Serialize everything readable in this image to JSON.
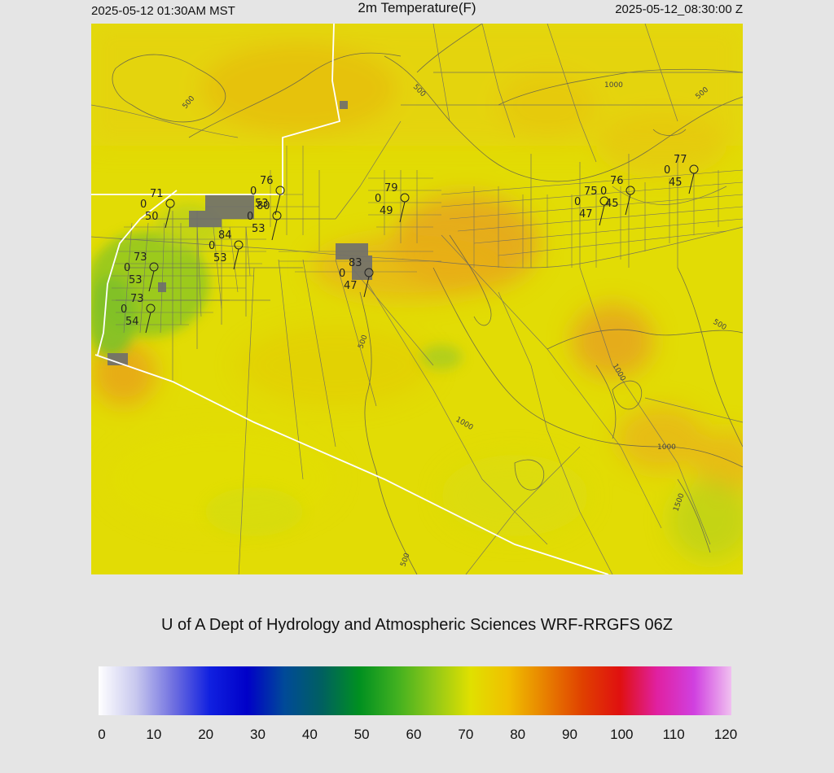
{
  "header": {
    "local_time": "2025-05-12 01:30AM MST",
    "title": "2m Temperature(F)",
    "utc_time": "2025-05-12_08:30:00 Z"
  },
  "footer": {
    "credit": "U of A Dept of Hydrology and Atmospheric Sciences WRF-RRGFS 06Z"
  },
  "colorbar": {
    "ticks": [
      "0",
      "10",
      "20",
      "30",
      "40",
      "50",
      "60",
      "70",
      "80",
      "90",
      "100",
      "110",
      "120"
    ],
    "min": 0,
    "max": 120,
    "colors": [
      "#ffffff",
      "#c8c8ee",
      "#7070e0",
      "#1020e0",
      "#0000c8",
      "#004a98",
      "#006060",
      "#009020",
      "#40b020",
      "#90c818",
      "#e0e000",
      "#f0c000",
      "#e88000",
      "#e04000",
      "#e01010",
      "#e020a0",
      "#d040e0",
      "#f0c0f0"
    ]
  },
  "stations": [
    {
      "temp": "71",
      "wind": "0",
      "dew": "50"
    },
    {
      "temp": "76",
      "wind": "0",
      "dew": "53"
    },
    {
      "temp": "80",
      "wind": "0",
      "dew": "53"
    },
    {
      "temp": "84",
      "wind": "0",
      "dew": "53"
    },
    {
      "temp": "73",
      "wind": "0",
      "dew": "53"
    },
    {
      "temp": "73",
      "wind": "0",
      "dew": "54"
    },
    {
      "temp": "79",
      "wind": "0",
      "dew": "49"
    },
    {
      "temp": "83",
      "wind": "0",
      "dew": "47"
    },
    {
      "temp": "76",
      "wind": "0",
      "dew": "45"
    },
    {
      "temp": "75",
      "wind": "0",
      "dew": "47"
    },
    {
      "temp": "77",
      "wind": "0",
      "dew": "45"
    }
  ],
  "contour_labels": [
    "500",
    "500",
    "500",
    "1000",
    "500",
    "500",
    "1000",
    "1000",
    "1000",
    "500",
    "1500",
    "500"
  ]
}
